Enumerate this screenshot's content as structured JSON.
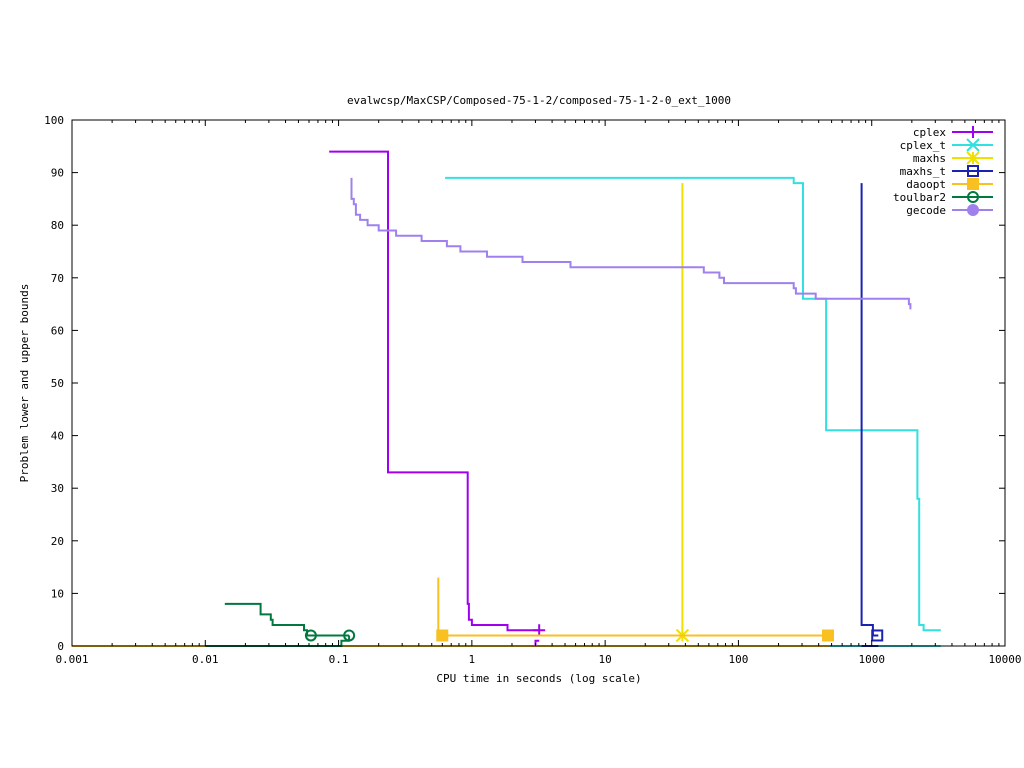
{
  "chart_data": {
    "type": "line",
    "title": "evalwcsp/MaxCSP/Composed-75-1-2/composed-75-1-2-0_ext_1000",
    "xlabel": "CPU time in seconds (log scale)",
    "ylabel": "Problem lower and upper bounds",
    "xscale": "log",
    "xlim": [
      0.001,
      10000
    ],
    "ylim": [
      0,
      100
    ],
    "xticks": [
      0.001,
      0.01,
      0.1,
      1,
      10,
      100,
      1000,
      10000
    ],
    "xtick_labels": [
      "0.001",
      "0.01",
      "0.1",
      "1",
      "10",
      "100",
      "1000",
      "10000"
    ],
    "yticks": [
      0,
      10,
      20,
      30,
      40,
      50,
      60,
      70,
      80,
      90,
      100
    ],
    "ytick_labels": [
      "0",
      "10",
      "20",
      "30",
      "40",
      "50",
      "60",
      "70",
      "80",
      "90",
      "100"
    ],
    "legend_position": "top-right",
    "grid": false,
    "series": [
      {
        "name": "cplex",
        "color": "#a000f0",
        "marker": "plus",
        "points": [
          [
            0.085,
            94
          ],
          [
            0.235,
            94
          ],
          [
            0.235,
            33
          ],
          [
            0.93,
            33
          ],
          [
            0.93,
            8
          ],
          [
            0.95,
            8
          ],
          [
            0.95,
            5
          ],
          [
            1.0,
            5
          ],
          [
            1.0,
            4
          ],
          [
            1.85,
            4
          ],
          [
            1.85,
            3
          ],
          [
            3.2,
            3
          ]
        ],
        "points_lower": [
          [
            0.001,
            0
          ],
          [
            3.0,
            0
          ],
          [
            3.0,
            1
          ],
          [
            3.2,
            1
          ]
        ],
        "markers": [
          [
            3.2,
            3
          ]
        ]
      },
      {
        "name": "cplex_t",
        "color": "#33e0e0",
        "marker": "cross",
        "points": [
          [
            0.63,
            89
          ],
          [
            260,
            89
          ],
          [
            260,
            88
          ],
          [
            305,
            88
          ],
          [
            305,
            66
          ],
          [
            455,
            66
          ],
          [
            455,
            41
          ],
          [
            2200,
            41
          ],
          [
            2200,
            28
          ],
          [
            2270,
            28
          ],
          [
            2270,
            4
          ],
          [
            2450,
            4
          ],
          [
            2450,
            3
          ],
          [
            3300,
            3
          ]
        ],
        "points_lower": [
          [
            480,
            0
          ],
          [
            3300,
            0
          ]
        ],
        "markers": []
      },
      {
        "name": "maxhs",
        "color": "#f0e000",
        "marker": "star",
        "points": [
          [
            38,
            88
          ],
          [
            38,
            2
          ]
        ],
        "markers": [
          [
            38,
            2
          ]
        ]
      },
      {
        "name": "maxhs_t",
        "color": "#1a22b0",
        "marker": "square",
        "points": [
          [
            840,
            88
          ],
          [
            840,
            4
          ],
          [
            1020,
            4
          ],
          [
            1020,
            2
          ],
          [
            1120,
            2
          ]
        ],
        "points_lower": [
          [
            840,
            0
          ],
          [
            1120,
            0
          ]
        ],
        "markers": [
          [
            1100,
            2
          ]
        ]
      },
      {
        "name": "daoopt",
        "color": "#f8c020",
        "marker": "filled-square",
        "points": [
          [
            0.56,
            13
          ],
          [
            0.56,
            2
          ],
          [
            480,
            2
          ]
        ],
        "points_lower": [
          [
            0.001,
            0
          ],
          [
            480,
            0
          ]
        ],
        "markers": [
          [
            0.6,
            2
          ],
          [
            470,
            2
          ]
        ]
      },
      {
        "name": "toulbar2",
        "color": "#007840",
        "marker": "circle",
        "points": [
          [
            0.014,
            8
          ],
          [
            0.026,
            8
          ],
          [
            0.026,
            6
          ],
          [
            0.031,
            6
          ],
          [
            0.031,
            5
          ],
          [
            0.032,
            5
          ],
          [
            0.032,
            4
          ],
          [
            0.055,
            4
          ],
          [
            0.055,
            3
          ],
          [
            0.058,
            3
          ],
          [
            0.058,
            2
          ],
          [
            0.12,
            2
          ]
        ],
        "points_lower": [
          [
            0.01,
            0
          ],
          [
            0.105,
            0
          ],
          [
            0.105,
            1
          ],
          [
            0.12,
            1
          ],
          [
            0.12,
            2
          ]
        ],
        "markers": [
          [
            0.062,
            2
          ],
          [
            0.12,
            2
          ]
        ]
      },
      {
        "name": "gecode",
        "color": "#9f80ee",
        "marker": "filled-circle",
        "points": [
          [
            0.125,
            89
          ],
          [
            0.125,
            85
          ],
          [
            0.13,
            85
          ],
          [
            0.13,
            84
          ],
          [
            0.135,
            84
          ],
          [
            0.135,
            82
          ],
          [
            0.145,
            82
          ],
          [
            0.145,
            81
          ],
          [
            0.165,
            81
          ],
          [
            0.165,
            80
          ],
          [
            0.2,
            80
          ],
          [
            0.2,
            79
          ],
          [
            0.27,
            79
          ],
          [
            0.27,
            78
          ],
          [
            0.42,
            78
          ],
          [
            0.42,
            77
          ],
          [
            0.65,
            77
          ],
          [
            0.65,
            76
          ],
          [
            0.82,
            76
          ],
          [
            0.82,
            75
          ],
          [
            1.3,
            75
          ],
          [
            1.3,
            74
          ],
          [
            2.4,
            74
          ],
          [
            2.4,
            73
          ],
          [
            5.5,
            73
          ],
          [
            5.5,
            72
          ],
          [
            55,
            72
          ],
          [
            55,
            71
          ],
          [
            72,
            71
          ],
          [
            72,
            70
          ],
          [
            78,
            70
          ],
          [
            78,
            69
          ],
          [
            260,
            69
          ],
          [
            260,
            68
          ],
          [
            270,
            68
          ],
          [
            270,
            67
          ],
          [
            380,
            67
          ],
          [
            380,
            66
          ],
          [
            1900,
            66
          ],
          [
            1900,
            65
          ],
          [
            1950,
            65
          ],
          [
            1950,
            64
          ]
        ],
        "markers": []
      }
    ]
  }
}
